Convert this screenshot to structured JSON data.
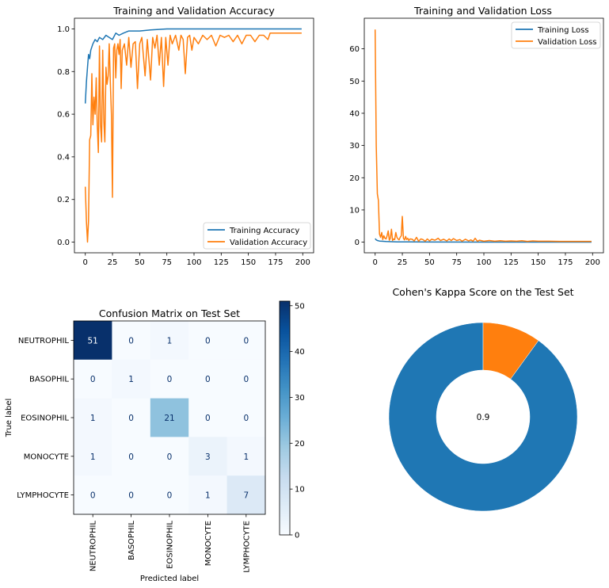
{
  "chart_data": [
    {
      "type": "line",
      "title": "Training and Validation Accuracy",
      "xlabel": "",
      "ylabel": "",
      "xlim": [
        -10,
        210
      ],
      "ylim": [
        -0.05,
        1.05
      ],
      "xticks": [
        0,
        25,
        50,
        75,
        100,
        125,
        150,
        175,
        200
      ],
      "yticks": [
        0.0,
        0.2,
        0.4,
        0.6,
        0.8,
        1.0
      ],
      "ytick_labels": [
        "0.0",
        "0.2",
        "0.4",
        "0.6",
        "0.8",
        "1.0"
      ],
      "grid": false,
      "legend_position": "lower-right",
      "series": [
        {
          "name": "Training Accuracy",
          "color": "#1f77b4",
          "points": [
            [
              0,
              0.65
            ],
            [
              1,
              0.75
            ],
            [
              2,
              0.82
            ],
            [
              3,
              0.88
            ],
            [
              4,
              0.86
            ],
            [
              5,
              0.9
            ],
            [
              7,
              0.93
            ],
            [
              9,
              0.95
            ],
            [
              11,
              0.94
            ],
            [
              13,
              0.96
            ],
            [
              16,
              0.95
            ],
            [
              19,
              0.97
            ],
            [
              22,
              0.96
            ],
            [
              25,
              0.95
            ],
            [
              28,
              0.98
            ],
            [
              31,
              0.97
            ],
            [
              35,
              0.98
            ],
            [
              40,
              0.99
            ],
            [
              45,
              0.99
            ],
            [
              50,
              0.99
            ],
            [
              60,
              0.995
            ],
            [
              75,
              1.0
            ],
            [
              100,
              1.0
            ],
            [
              150,
              1.0
            ],
            [
              199,
              1.0
            ]
          ]
        },
        {
          "name": "Validation Accuracy",
          "color": "#ff7f0e",
          "points": [
            [
              0,
              0.26
            ],
            [
              1,
              0.1
            ],
            [
              2,
              0.0
            ],
            [
              3,
              0.1
            ],
            [
              4,
              0.48
            ],
            [
              5,
              0.5
            ],
            [
              6,
              0.79
            ],
            [
              7,
              0.55
            ],
            [
              8,
              0.68
            ],
            [
              9,
              0.6
            ],
            [
              10,
              0.77
            ],
            [
              11,
              0.55
            ],
            [
              12,
              0.42
            ],
            [
              13,
              0.92
            ],
            [
              14,
              0.55
            ],
            [
              15,
              0.47
            ],
            [
              16,
              0.9
            ],
            [
              17,
              0.57
            ],
            [
              18,
              0.47
            ],
            [
              19,
              0.82
            ],
            [
              20,
              0.74
            ],
            [
              21,
              0.78
            ],
            [
              22,
              0.93
            ],
            [
              23,
              0.75
            ],
            [
              24,
              0.6
            ],
            [
              25,
              0.21
            ],
            [
              26,
              0.91
            ],
            [
              27,
              0.93
            ],
            [
              28,
              0.77
            ],
            [
              29,
              0.9
            ],
            [
              30,
              0.93
            ],
            [
              31,
              0.88
            ],
            [
              32,
              0.95
            ],
            [
              33,
              0.72
            ],
            [
              34,
              0.9
            ],
            [
              36,
              0.93
            ],
            [
              38,
              0.83
            ],
            [
              40,
              0.96
            ],
            [
              42,
              0.82
            ],
            [
              44,
              0.93
            ],
            [
              46,
              0.94
            ],
            [
              48,
              0.72
            ],
            [
              50,
              0.93
            ],
            [
              52,
              0.96
            ],
            [
              55,
              0.78
            ],
            [
              57,
              0.95
            ],
            [
              60,
              0.76
            ],
            [
              62,
              0.96
            ],
            [
              64,
              0.91
            ],
            [
              66,
              0.97
            ],
            [
              68,
              0.83
            ],
            [
              70,
              0.96
            ],
            [
              72,
              0.73
            ],
            [
              74,
              0.96
            ],
            [
              76,
              0.83
            ],
            [
              78,
              0.97
            ],
            [
              80,
              0.93
            ],
            [
              83,
              0.97
            ],
            [
              86,
              0.9
            ],
            [
              88,
              0.97
            ],
            [
              90,
              0.95
            ],
            [
              92,
              0.79
            ],
            [
              94,
              0.96
            ],
            [
              96,
              0.97
            ],
            [
              98,
              0.9
            ],
            [
              100,
              0.96
            ],
            [
              104,
              0.93
            ],
            [
              108,
              0.97
            ],
            [
              112,
              0.95
            ],
            [
              116,
              0.97
            ],
            [
              120,
              0.92
            ],
            [
              124,
              0.97
            ],
            [
              128,
              0.96
            ],
            [
              132,
              0.97
            ],
            [
              136,
              0.94
            ],
            [
              140,
              0.97
            ],
            [
              144,
              0.93
            ],
            [
              148,
              0.97
            ],
            [
              152,
              0.97
            ],
            [
              156,
              0.94
            ],
            [
              160,
              0.97
            ],
            [
              164,
              0.97
            ],
            [
              168,
              0.95
            ],
            [
              170,
              0.98
            ],
            [
              199,
              0.98
            ]
          ]
        }
      ]
    },
    {
      "type": "line",
      "title": "Training and Validation Loss",
      "xlabel": "",
      "ylabel": "",
      "xlim": [
        -10,
        210
      ],
      "ylim": [
        -3.3,
        69.5
      ],
      "xticks": [
        0,
        25,
        50,
        75,
        100,
        125,
        150,
        175,
        200
      ],
      "yticks": [
        0,
        10,
        20,
        30,
        40,
        50,
        60
      ],
      "ytick_labels": [
        "0",
        "10",
        "20",
        "30",
        "40",
        "50",
        "60"
      ],
      "grid": false,
      "legend_position": "top-right",
      "series": [
        {
          "name": "Training Loss",
          "color": "#1f77b4",
          "points": [
            [
              0,
              1.1
            ],
            [
              1,
              0.7
            ],
            [
              2,
              0.5
            ],
            [
              4,
              0.35
            ],
            [
              6,
              0.3
            ],
            [
              10,
              0.2
            ],
            [
              15,
              0.15
            ],
            [
              20,
              0.1
            ],
            [
              30,
              0.08
            ],
            [
              50,
              0.05
            ],
            [
              100,
              0.03
            ],
            [
              199,
              0.02
            ]
          ]
        },
        {
          "name": "Validation Loss",
          "color": "#ff7f0e",
          "points": [
            [
              0,
              66
            ],
            [
              1,
              30
            ],
            [
              2,
              15
            ],
            [
              3,
              13
            ],
            [
              4,
              2.5
            ],
            [
              5,
              1.5
            ],
            [
              6,
              3
            ],
            [
              7,
              0.8
            ],
            [
              8,
              2
            ],
            [
              9,
              1.2
            ],
            [
              10,
              1
            ],
            [
              11,
              2
            ],
            [
              12,
              3.5
            ],
            [
              13,
              0.6
            ],
            [
              14,
              1.2
            ],
            [
              15,
              4
            ],
            [
              16,
              0.5
            ],
            [
              17,
              1
            ],
            [
              18,
              0.8
            ],
            [
              19,
              3
            ],
            [
              20,
              1.5
            ],
            [
              21,
              1
            ],
            [
              22,
              0.7
            ],
            [
              23,
              1.5
            ],
            [
              24,
              2
            ],
            [
              25,
              8
            ],
            [
              26,
              1.2
            ],
            [
              27,
              0.7
            ],
            [
              28,
              1.8
            ],
            [
              29,
              0.8
            ],
            [
              30,
              1.2
            ],
            [
              31,
              0.5
            ],
            [
              32,
              1
            ],
            [
              34,
              0.9
            ],
            [
              36,
              0.4
            ],
            [
              38,
              1.5
            ],
            [
              40,
              0.3
            ],
            [
              42,
              1
            ],
            [
              44,
              0.8
            ],
            [
              46,
              0.3
            ],
            [
              48,
              1
            ],
            [
              50,
              0.4
            ],
            [
              52,
              0.9
            ],
            [
              55,
              0.6
            ],
            [
              58,
              1.2
            ],
            [
              60,
              0.5
            ],
            [
              63,
              0.9
            ],
            [
              66,
              0.4
            ],
            [
              68,
              1
            ],
            [
              70,
              0.5
            ],
            [
              72,
              1.1
            ],
            [
              75,
              0.5
            ],
            [
              78,
              0.8
            ],
            [
              80,
              0.3
            ],
            [
              83,
              0.9
            ],
            [
              86,
              0.4
            ],
            [
              88,
              0.7
            ],
            [
              90,
              0.3
            ],
            [
              92,
              1.2
            ],
            [
              94,
              0.3
            ],
            [
              96,
              0.6
            ],
            [
              100,
              0.3
            ],
            [
              105,
              0.5
            ],
            [
              110,
              0.3
            ],
            [
              115,
              0.45
            ],
            [
              120,
              0.3
            ],
            [
              125,
              0.4
            ],
            [
              130,
              0.3
            ],
            [
              135,
              0.45
            ],
            [
              140,
              0.25
            ],
            [
              145,
              0.4
            ],
            [
              150,
              0.3
            ],
            [
              160,
              0.3
            ],
            [
              170,
              0.25
            ],
            [
              199,
              0.25
            ]
          ]
        }
      ]
    },
    {
      "type": "heatmap",
      "title": "Confusion Matrix on Test Set",
      "xlabel": "Predicted label",
      "ylabel": "True label",
      "labels": [
        "NEUTROPHIL",
        "BASOPHIL",
        "EOSINOPHIL",
        "MONOCYTE",
        "LYMPHOCYTE"
      ],
      "matrix": [
        [
          51,
          0,
          1,
          0,
          0
        ],
        [
          0,
          1,
          0,
          0,
          0
        ],
        [
          1,
          0,
          21,
          0,
          0
        ],
        [
          1,
          0,
          0,
          3,
          1
        ],
        [
          0,
          0,
          0,
          1,
          7
        ]
      ],
      "colormap": "Blues",
      "vmin": 0,
      "vmax": 51,
      "colorbar_ticks": [
        0,
        10,
        20,
        30,
        40,
        50
      ]
    },
    {
      "type": "pie",
      "title": "Cohen's Kappa Score on the Test Set",
      "center_label": "0.9",
      "values": [
        0.9,
        0.1
      ],
      "colors": [
        "#1f77b4",
        "#ff7f0e"
      ],
      "donut": true
    }
  ]
}
